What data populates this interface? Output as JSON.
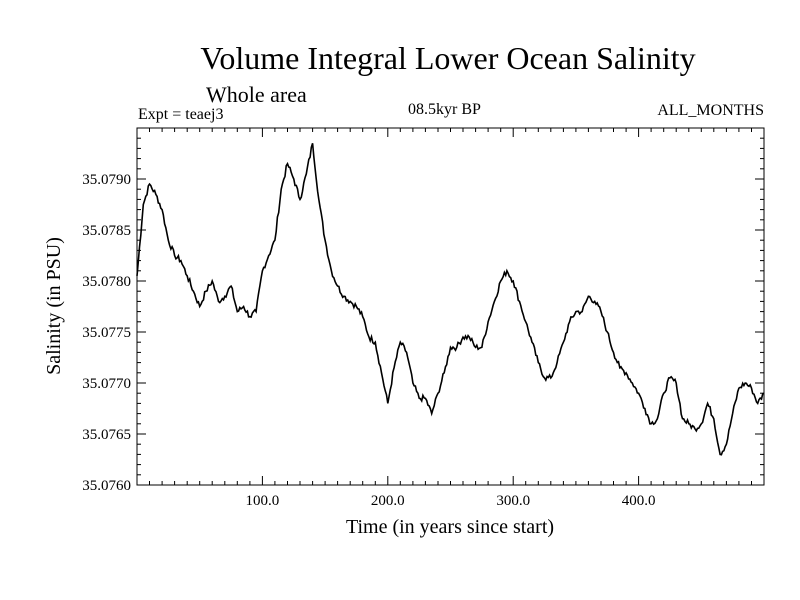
{
  "chart_data": {
    "type": "line",
    "title": "Volume Integral Lower Ocean Salinity",
    "subtitle": "Whole area",
    "expt_label": "Expt = teaej3",
    "period_label": "08.5kyr BP",
    "months_label": "ALL_MONTHS",
    "xlabel": "Time (in years since start)",
    "ylabel": "Salinity (in PSU)",
    "xlim": [
      0,
      500
    ],
    "ylim": [
      35.076,
      35.0795
    ],
    "x_ticks": [
      100,
      200,
      300,
      400
    ],
    "x_tick_labels": [
      "100.0",
      "200.0",
      "300.0",
      "400.0"
    ],
    "y_ticks": [
      35.076,
      35.0765,
      35.077,
      35.0775,
      35.078,
      35.0785,
      35.079
    ],
    "y_tick_labels": [
      "35.0760",
      "35.0765",
      "35.0770",
      "35.0775",
      "35.0780",
      "35.0785",
      "35.0790"
    ],
    "series": [
      {
        "name": "Salinity",
        "x": [
          0,
          5,
          10,
          15,
          20,
          25,
          30,
          35,
          40,
          45,
          50,
          55,
          60,
          65,
          70,
          75,
          80,
          85,
          90,
          95,
          100,
          105,
          110,
          115,
          120,
          125,
          130,
          135,
          140,
          145,
          150,
          155,
          160,
          165,
          170,
          175,
          180,
          185,
          190,
          195,
          200,
          205,
          210,
          215,
          220,
          225,
          230,
          235,
          240,
          245,
          250,
          255,
          260,
          265,
          270,
          275,
          280,
          285,
          290,
          295,
          300,
          305,
          310,
          315,
          320,
          325,
          330,
          335,
          340,
          345,
          350,
          355,
          360,
          365,
          370,
          375,
          380,
          385,
          390,
          395,
          400,
          405,
          410,
          415,
          420,
          425,
          430,
          435,
          440,
          445,
          450,
          455,
          460,
          465,
          470,
          475,
          480,
          485,
          490,
          495,
          500
        ],
        "values": [
          35.07805,
          35.07875,
          35.07895,
          35.07885,
          35.0787,
          35.0784,
          35.07825,
          35.0782,
          35.07805,
          35.0779,
          35.07775,
          35.0779,
          35.078,
          35.0778,
          35.07785,
          35.07795,
          35.0777,
          35.07775,
          35.07765,
          35.0777,
          35.0781,
          35.07825,
          35.0784,
          35.0789,
          35.07915,
          35.079,
          35.0788,
          35.07905,
          35.07935,
          35.0788,
          35.0784,
          35.0781,
          35.07795,
          35.07785,
          35.0778,
          35.07775,
          35.07765,
          35.07745,
          35.0774,
          35.0771,
          35.0768,
          35.07715,
          35.0774,
          35.0773,
          35.077,
          35.07685,
          35.07685,
          35.0767,
          35.0769,
          35.0771,
          35.07735,
          35.07735,
          35.07745,
          35.07745,
          35.07735,
          35.07735,
          35.0776,
          35.0778,
          35.078,
          35.0781,
          35.078,
          35.0778,
          35.0776,
          35.0774,
          35.0772,
          35.07705,
          35.07705,
          35.0772,
          35.0774,
          35.0776,
          35.0777,
          35.0777,
          35.07785,
          35.0778,
          35.0777,
          35.0775,
          35.0773,
          35.07715,
          35.0771,
          35.077,
          35.0769,
          35.07675,
          35.0766,
          35.07665,
          35.0769,
          35.07705,
          35.077,
          35.07665,
          35.0766,
          35.07655,
          35.0766,
          35.0768,
          35.07665,
          35.0763,
          35.0764,
          35.0767,
          35.07695,
          35.077,
          35.07695,
          35.0768,
          35.0769
        ]
      }
    ]
  }
}
